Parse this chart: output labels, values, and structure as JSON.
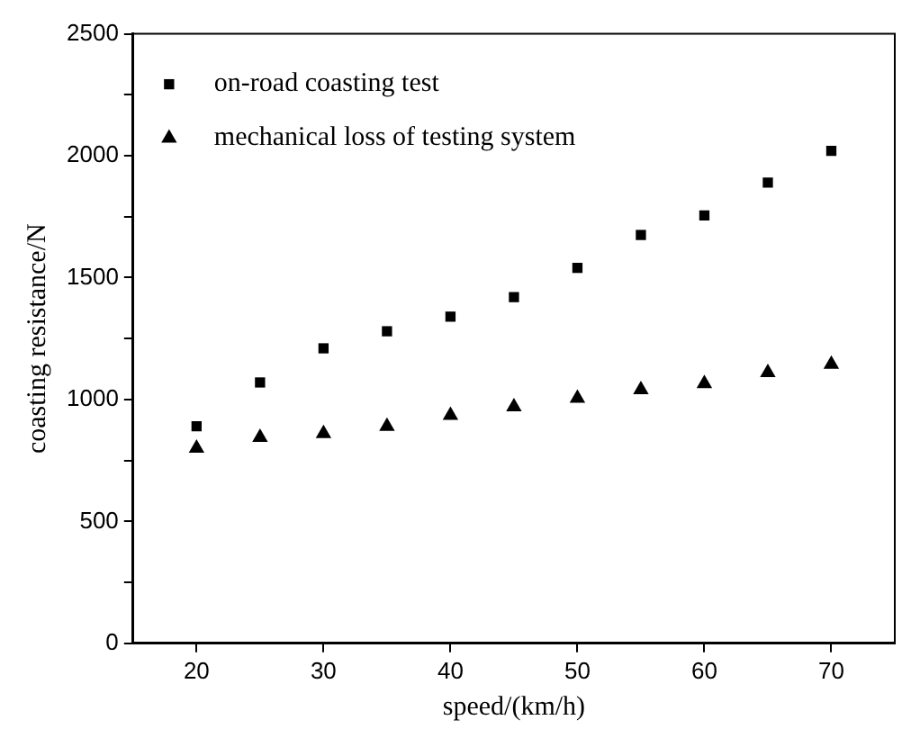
{
  "chart_data": {
    "type": "scatter",
    "xlabel": "speed/(km/h)",
    "ylabel": "coasting resistance/N",
    "x": [
      20,
      25,
      30,
      35,
      40,
      45,
      50,
      55,
      60,
      65,
      70
    ],
    "series": [
      {
        "name": "on-road coasting test",
        "color": "#000000",
        "marker": "square",
        "values": [
          890,
          1070,
          1210,
          1280,
          1340,
          1420,
          1540,
          1675,
          1755,
          1890,
          2020
        ]
      },
      {
        "name": "mechanical loss of testing system",
        "color": "#000000",
        "marker": "triangle",
        "values": [
          800,
          845,
          860,
          890,
          935,
          970,
          1005,
          1040,
          1065,
          1110,
          1145
        ]
      }
    ],
    "xlim": [
      15,
      75
    ],
    "xticks": [
      20,
      30,
      40,
      50,
      60,
      70
    ],
    "ylim": [
      0,
      2500
    ],
    "yticks": [
      0,
      {
        "value": 250,
        "label": null
      },
      500,
      {
        "value": 750,
        "label": null
      },
      1000,
      {
        "value": 1250,
        "label": null
      },
      1500,
      {
        "value": 1750,
        "label": null
      },
      2000,
      {
        "value": 2250,
        "label": null
      },
      2500
    ],
    "grid": false,
    "legend": "top left"
  }
}
